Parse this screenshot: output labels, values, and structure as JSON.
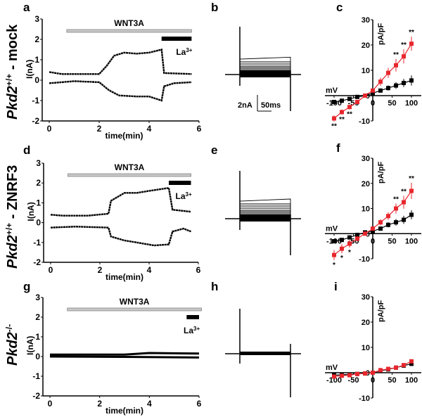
{
  "panel_labels": {
    "a": "a",
    "b": "b",
    "c": "c",
    "d": "d",
    "e": "e",
    "f": "f",
    "g": "g",
    "h": "h",
    "i": "i"
  },
  "row_labels": [
    {
      "gene": "Pkd2",
      "sup": "+/+",
      "suffix": " - mock"
    },
    {
      "gene": "Pkd2",
      "sup": "+/+",
      "suffix": " - ZNRF3"
    },
    {
      "gene": "Pkd2",
      "sup": "-/-",
      "suffix": ""
    }
  ],
  "scale_bar": {
    "current": "2nA",
    "time": "50ms"
  },
  "colors": {
    "wt": "#000000",
    "treated": "#e8262d",
    "wnt_bar": "#c8c8c8",
    "la_bar": "#000000"
  },
  "chart_data": [
    {
      "panel": "a",
      "type": "line",
      "xlabel": "time(min)",
      "ylabel": "I(nA)",
      "xlim": [
        0,
        6
      ],
      "ylim": [
        -2,
        3
      ],
      "xticks": [
        "0",
        "2",
        "4",
        "6"
      ],
      "yticks": [
        "-2",
        "-1",
        "0",
        "1",
        "2",
        "3"
      ],
      "treatment_bar": {
        "label": "WNT3A",
        "range": [
          0.7,
          5.7
        ]
      },
      "blocker_bar": {
        "label": "La",
        "sup": "3+",
        "range": [
          4.5,
          5.7
        ]
      },
      "series": [
        {
          "points": [
            [
              0,
              0.4
            ],
            [
              0.5,
              0.3
            ],
            [
              2,
              0.3
            ],
            [
              2.3,
              0.7
            ],
            [
              2.6,
              1.2
            ],
            [
              3,
              1.35
            ],
            [
              3.5,
              1.3
            ],
            [
              4,
              1.35
            ],
            [
              4.5,
              1.5
            ],
            [
              4.6,
              0.35
            ],
            [
              5.7,
              0.3
            ]
          ]
        },
        {
          "points": [
            [
              0,
              -0.15
            ],
            [
              1,
              -0.05
            ],
            [
              2,
              -0.1
            ],
            [
              2.4,
              -0.5
            ],
            [
              2.8,
              -0.75
            ],
            [
              3.5,
              -0.8
            ],
            [
              4,
              -0.8
            ],
            [
              4.5,
              -1.0
            ],
            [
              4.6,
              -0.3
            ],
            [
              5,
              -0.15
            ],
            [
              5.7,
              -0.1
            ]
          ]
        }
      ]
    },
    {
      "panel": "d",
      "type": "line",
      "xlabel": "time(min)",
      "ylabel": "I(nA)",
      "xlim": [
        0,
        6
      ],
      "ylim": [
        -2,
        3
      ],
      "xticks": [
        "0",
        "2",
        "4",
        "6"
      ],
      "yticks": [
        "-2",
        "-1",
        "0",
        "1",
        "2",
        "3"
      ],
      "treatment_bar": {
        "label": "WNT3A",
        "range": [
          0.7,
          5.7
        ]
      },
      "blocker_bar": {
        "label": "La",
        "sup": "3+",
        "range": [
          4.8,
          5.7
        ]
      },
      "series": [
        {
          "points": [
            [
              0,
              0.4
            ],
            [
              0.5,
              0.35
            ],
            [
              1.5,
              0.35
            ],
            [
              2.35,
              0.45
            ],
            [
              2.45,
              1.1
            ],
            [
              3,
              1.5
            ],
            [
              3.5,
              1.5
            ],
            [
              4,
              1.6
            ],
            [
              4.8,
              1.75
            ],
            [
              4.95,
              0.65
            ],
            [
              5.7,
              0.55
            ]
          ]
        },
        {
          "points": [
            [
              0,
              -0.25
            ],
            [
              1,
              -0.2
            ],
            [
              2.35,
              -0.25
            ],
            [
              2.45,
              -0.7
            ],
            [
              3,
              -0.9
            ],
            [
              3.5,
              -1.0
            ],
            [
              4.2,
              -1.15
            ],
            [
              4.8,
              -1.1
            ],
            [
              4.95,
              -0.45
            ],
            [
              5.4,
              -0.3
            ],
            [
              5.7,
              -0.45
            ]
          ]
        }
      ]
    },
    {
      "panel": "g",
      "type": "line",
      "xlabel": "time(min)",
      "ylabel": "I(nA)",
      "xlim": [
        0,
        6
      ],
      "ylim": [
        -2,
        3
      ],
      "xticks": [
        "0",
        "2",
        "4",
        "6"
      ],
      "yticks": [
        "-2",
        "-1",
        "0",
        "1",
        "2",
        "3"
      ],
      "treatment_bar": {
        "label": "WNT3A",
        "range": [
          0.7,
          6.1
        ]
      },
      "blocker_bar": {
        "label": "La",
        "sup": "3+",
        "range": [
          5.5,
          6.0
        ]
      },
      "series": [
        {
          "points": [
            [
              0,
              0.1
            ],
            [
              3,
              0.1
            ],
            [
              4,
              0.18
            ],
            [
              6,
              0.15
            ]
          ]
        },
        {
          "points": [
            [
              0,
              0.0
            ],
            [
              3,
              -0.02
            ],
            [
              6,
              -0.05
            ]
          ]
        }
      ]
    },
    {
      "panel": "c",
      "type": "line",
      "xlabel": "mV",
      "ylabel": "pA/pF",
      "xlim": [
        -100,
        100
      ],
      "ylim": [
        -10,
        30
      ],
      "xticks": [
        "-100",
        "-50",
        "0",
        "50",
        "100"
      ],
      "yticks": [
        "-10",
        "0",
        "10",
        "20",
        "30"
      ],
      "x": [
        -100,
        -80,
        -60,
        -40,
        -20,
        0,
        20,
        40,
        60,
        80,
        100
      ],
      "series": [
        {
          "color": "#000000",
          "values": [
            -2.5,
            -2,
            -1.3,
            -0.5,
            0,
            1,
            2,
            3,
            4,
            5,
            6
          ],
          "err": [
            0.8,
            0.7,
            0.6,
            0.5,
            0.4,
            0.5,
            0.8,
            1,
            1.3,
            1.6,
            2
          ]
        },
        {
          "color": "#e8262d",
          "values": [
            -9,
            -6.5,
            -4.5,
            -2.5,
            0,
            2,
            5.5,
            9,
            12,
            15.5,
            20.5
          ],
          "err": [
            1.2,
            1,
            0.9,
            0.7,
            0.5,
            0.8,
            1.6,
            2,
            2.5,
            2.8,
            2.8
          ]
        }
      ],
      "stars": [
        {
          "x": -100,
          "t": "**"
        },
        {
          "x": -80,
          "t": "**"
        },
        {
          "x": -60,
          "t": "**"
        },
        {
          "x": 60,
          "t": "**"
        },
        {
          "x": 80,
          "t": "**"
        },
        {
          "x": 100,
          "t": "**"
        }
      ]
    },
    {
      "panel": "f",
      "type": "line",
      "xlabel": "mV",
      "ylabel": "pA/pF",
      "xlim": [
        -100,
        100
      ],
      "ylim": [
        -10,
        30
      ],
      "xticks": [
        "-100",
        "-50",
        "0",
        "50",
        "100"
      ],
      "yticks": [
        "-10",
        "0",
        "10",
        "20",
        "30"
      ],
      "x": [
        -100,
        -80,
        -60,
        -40,
        -20,
        0,
        20,
        40,
        60,
        80,
        100
      ],
      "series": [
        {
          "color": "#000000",
          "values": [
            -3,
            -2.5,
            -1.5,
            -0.5,
            0.5,
            1,
            2,
            3.5,
            4.5,
            5.5,
            7.5
          ],
          "err": [
            0.8,
            0.7,
            0.6,
            0.5,
            0.4,
            0.5,
            0.8,
            1,
            1.3,
            1.6,
            1.8
          ]
        },
        {
          "color": "#e8262d",
          "values": [
            -8.5,
            -6,
            -4,
            -2,
            0,
            2,
            4.5,
            7,
            10,
            12.5,
            17
          ],
          "err": [
            2,
            1.8,
            1.5,
            1,
            0.6,
            0.8,
            1.2,
            1.5,
            2,
            2.6,
            3.2
          ]
        }
      ],
      "stars": [
        {
          "x": -100,
          "t": "*"
        },
        {
          "x": -80,
          "t": "*"
        },
        {
          "x": -60,
          "t": "*"
        },
        {
          "x": 60,
          "t": "**"
        },
        {
          "x": 80,
          "t": "**"
        },
        {
          "x": 100,
          "t": "**"
        }
      ]
    },
    {
      "panel": "i",
      "type": "line",
      "xlabel": "mV",
      "ylabel": "pA/pF",
      "xlim": [
        -100,
        100
      ],
      "ylim": [
        -10,
        30
      ],
      "xticks": [
        "-100",
        "-50",
        "0",
        "50",
        "100"
      ],
      "yticks": [
        "-10",
        "0",
        "10",
        "20",
        "30"
      ],
      "x": [
        -100,
        -80,
        -60,
        -40,
        -20,
        0,
        20,
        40,
        60,
        80,
        100
      ],
      "series": [
        {
          "color": "#000000",
          "values": [
            -1,
            -0.8,
            -0.7,
            -0.5,
            -0.3,
            0,
            0.8,
            1.3,
            2,
            2.8,
            3.5
          ],
          "err": [
            0.3,
            0.3,
            0.3,
            0.3,
            0.2,
            0.2,
            0.3,
            0.4,
            0.5,
            0.5,
            0.6
          ]
        },
        {
          "color": "#e8262d",
          "values": [
            -1.5,
            -1.2,
            -1,
            -0.5,
            -0.3,
            0,
            1,
            1.5,
            2,
            3,
            4.5
          ],
          "err": [
            0.4,
            0.4,
            0.3,
            0.3,
            0.2,
            0.2,
            0.3,
            0.4,
            0.5,
            0.6,
            0.7
          ]
        }
      ],
      "stars": []
    }
  ]
}
